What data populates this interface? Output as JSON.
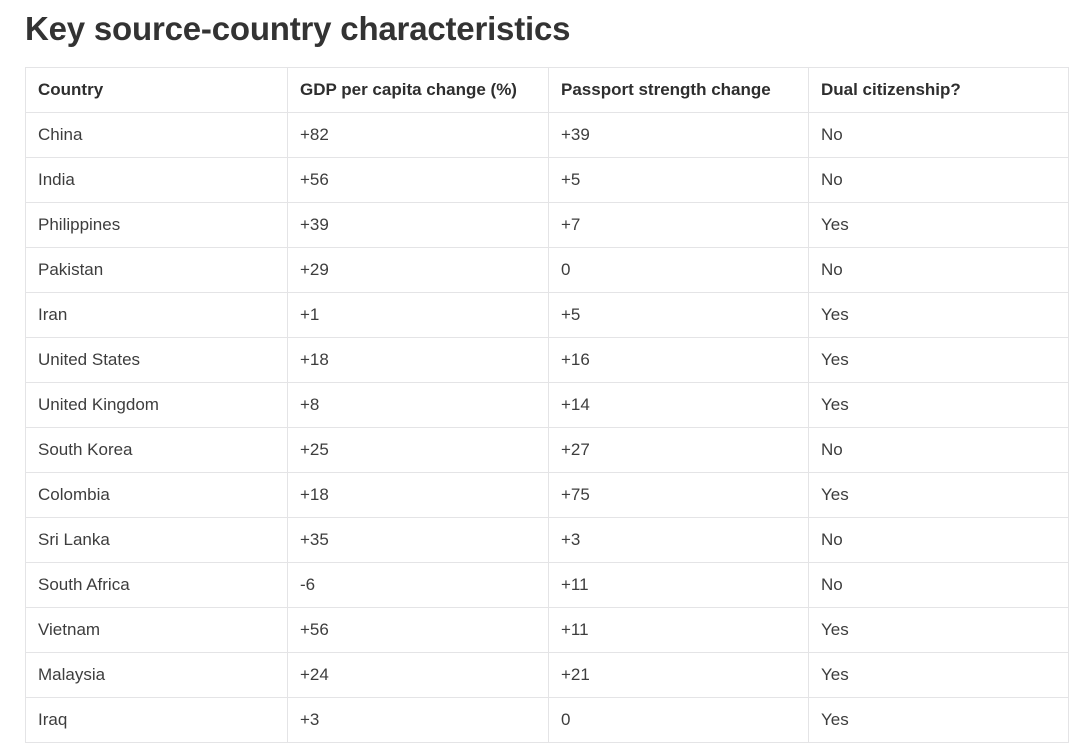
{
  "header": {
    "title": "Key source-country characteristics"
  },
  "table": {
    "columns": [
      "Country",
      "GDP per capita change (%)",
      "Passport strength change",
      "Dual citizenship?"
    ],
    "rows": [
      [
        "China",
        "+82",
        "+39",
        "No"
      ],
      [
        "India",
        "+56",
        "+5",
        "No"
      ],
      [
        "Philippines",
        "+39",
        "+7",
        "Yes"
      ],
      [
        "Pakistan",
        "+29",
        "0",
        "No"
      ],
      [
        "Iran",
        "+1",
        "+5",
        "Yes"
      ],
      [
        "United States",
        "+18",
        "+16",
        "Yes"
      ],
      [
        "United Kingdom",
        "+8",
        "+14",
        "Yes"
      ],
      [
        "South Korea",
        "+25",
        "+27",
        "No"
      ],
      [
        "Colombia",
        "+18",
        "+75",
        "Yes"
      ],
      [
        "Sri Lanka",
        "+35",
        "+3",
        "No"
      ],
      [
        "South Africa",
        "-6",
        "+11",
        "No"
      ],
      [
        "Vietnam",
        "+56",
        "+11",
        "Yes"
      ],
      [
        "Malaysia",
        "+24",
        "+21",
        "Yes"
      ],
      [
        "Iraq",
        "+3",
        "0",
        "Yes"
      ]
    ]
  },
  "chart_data": {
    "type": "table",
    "title": "Key source-country characteristics",
    "columns": [
      "Country",
      "GDP per capita change (%)",
      "Passport strength change",
      "Dual citizenship?"
    ],
    "rows": [
      {
        "country": "China",
        "gdp_per_capita_change_pct": 82,
        "passport_strength_change": 39,
        "dual_citizenship": "No"
      },
      {
        "country": "India",
        "gdp_per_capita_change_pct": 56,
        "passport_strength_change": 5,
        "dual_citizenship": "No"
      },
      {
        "country": "Philippines",
        "gdp_per_capita_change_pct": 39,
        "passport_strength_change": 7,
        "dual_citizenship": "Yes"
      },
      {
        "country": "Pakistan",
        "gdp_per_capita_change_pct": 29,
        "passport_strength_change": 0,
        "dual_citizenship": "No"
      },
      {
        "country": "Iran",
        "gdp_per_capita_change_pct": 1,
        "passport_strength_change": 5,
        "dual_citizenship": "Yes"
      },
      {
        "country": "United States",
        "gdp_per_capita_change_pct": 18,
        "passport_strength_change": 16,
        "dual_citizenship": "Yes"
      },
      {
        "country": "United Kingdom",
        "gdp_per_capita_change_pct": 8,
        "passport_strength_change": 14,
        "dual_citizenship": "Yes"
      },
      {
        "country": "South Korea",
        "gdp_per_capita_change_pct": 25,
        "passport_strength_change": 27,
        "dual_citizenship": "No"
      },
      {
        "country": "Colombia",
        "gdp_per_capita_change_pct": 18,
        "passport_strength_change": 75,
        "dual_citizenship": "Yes"
      },
      {
        "country": "Sri Lanka",
        "gdp_per_capita_change_pct": 35,
        "passport_strength_change": 3,
        "dual_citizenship": "No"
      },
      {
        "country": "South Africa",
        "gdp_per_capita_change_pct": -6,
        "passport_strength_change": 11,
        "dual_citizenship": "No"
      },
      {
        "country": "Vietnam",
        "gdp_per_capita_change_pct": 56,
        "passport_strength_change": 11,
        "dual_citizenship": "Yes"
      },
      {
        "country": "Malaysia",
        "gdp_per_capita_change_pct": 24,
        "passport_strength_change": 21,
        "dual_citizenship": "Yes"
      },
      {
        "country": "Iraq",
        "gdp_per_capita_change_pct": 3,
        "passport_strength_change": 0,
        "dual_citizenship": "Yes"
      }
    ],
    "layout_hints": {
      "grid": "full-borders",
      "header_bold": true,
      "text_align": "left"
    }
  },
  "colors": {
    "background": "#ffffff",
    "title_text": "#333333",
    "header_text": "#2e2e2e",
    "cell_text": "#3d3d3d",
    "border": "#e4e4e6"
  }
}
